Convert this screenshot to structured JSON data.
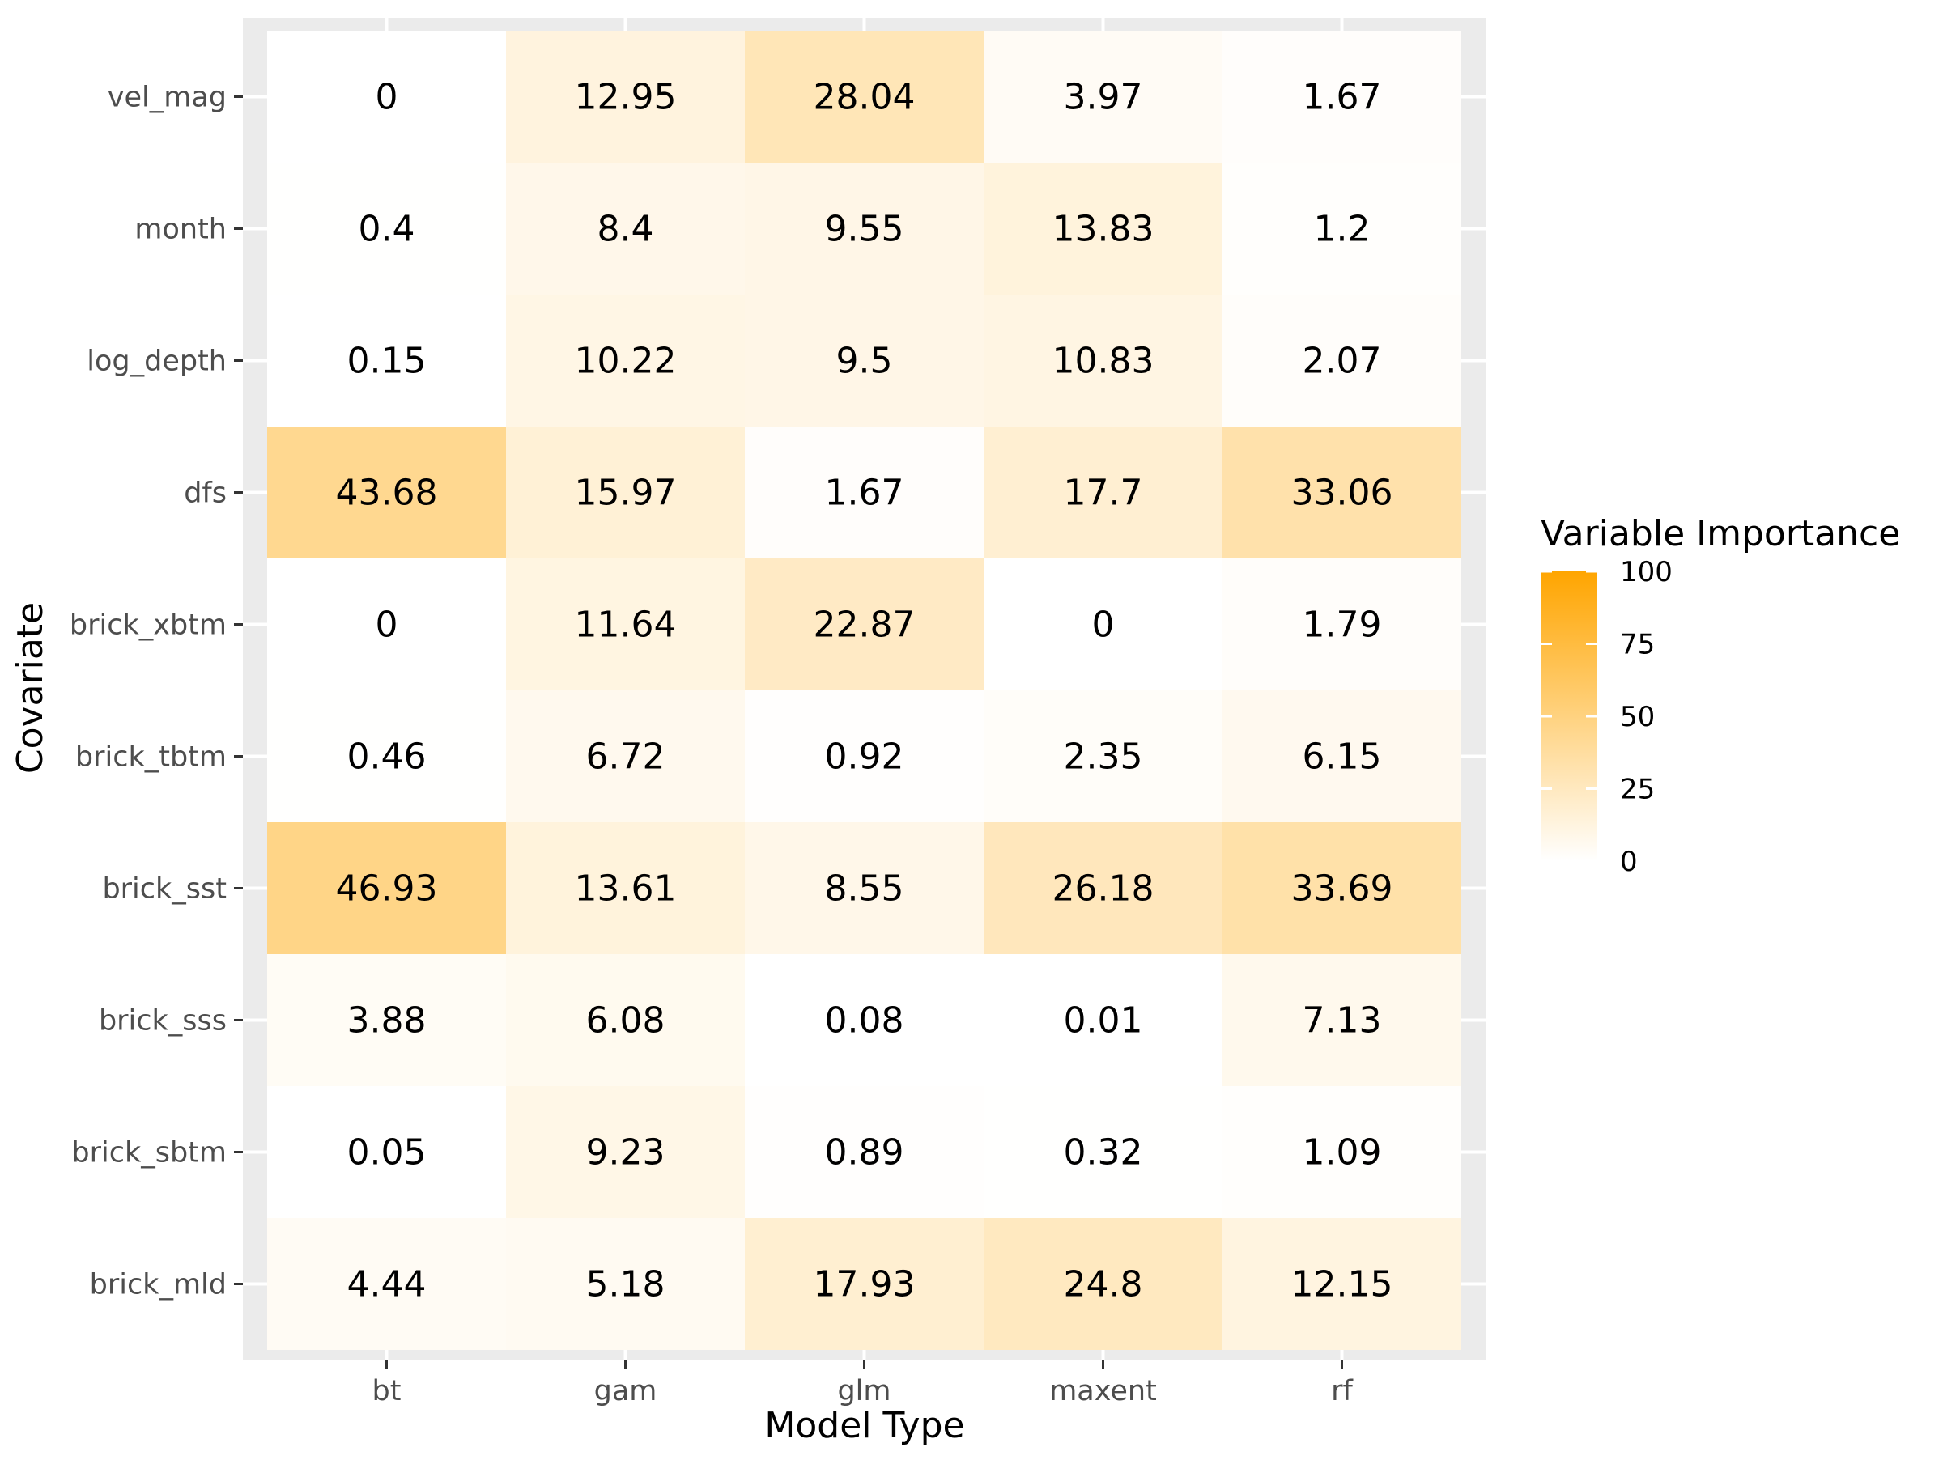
{
  "chart_data": {
    "type": "heatmap",
    "xlabel": "Model Type",
    "ylabel": "Covariate",
    "x_categories": [
      "bt",
      "gam",
      "glm",
      "maxent",
      "rf"
    ],
    "y_categories": [
      "vel_mag",
      "month",
      "log_depth",
      "dfs",
      "brick_xbtm",
      "brick_tbtm",
      "brick_sst",
      "brick_sss",
      "brick_sbtm",
      "brick_mld"
    ],
    "values": [
      [
        0,
        12.95,
        28.04,
        3.97,
        1.67
      ],
      [
        0.4,
        8.4,
        9.55,
        13.83,
        1.2
      ],
      [
        0.15,
        10.22,
        9.5,
        10.83,
        2.07
      ],
      [
        43.68,
        15.97,
        1.67,
        17.7,
        33.06
      ],
      [
        0,
        11.64,
        22.87,
        0,
        1.79
      ],
      [
        0.46,
        6.72,
        0.92,
        2.35,
        6.15
      ],
      [
        46.93,
        13.61,
        8.55,
        26.18,
        33.69
      ],
      [
        3.88,
        6.08,
        0.08,
        0.01,
        7.13
      ],
      [
        0.05,
        9.23,
        0.89,
        0.32,
        1.09
      ],
      [
        4.44,
        5.18,
        17.93,
        24.8,
        12.15
      ]
    ],
    "labels": [
      [
        "0",
        "12.95",
        "28.04",
        "3.97",
        "1.67"
      ],
      [
        "0.4",
        "8.4",
        "9.55",
        "13.83",
        "1.2"
      ],
      [
        "0.15",
        "10.22",
        "9.5",
        "10.83",
        "2.07"
      ],
      [
        "43.68",
        "15.97",
        "1.67",
        "17.7",
        "33.06"
      ],
      [
        "0",
        "11.64",
        "22.87",
        "0",
        "1.79"
      ],
      [
        "0.46",
        "6.72",
        "0.92",
        "2.35",
        "6.15"
      ],
      [
        "46.93",
        "13.61",
        "8.55",
        "26.18",
        "33.69"
      ],
      [
        "3.88",
        "6.08",
        "0.08",
        "0.01",
        "7.13"
      ],
      [
        "0.05",
        "9.23",
        "0.89",
        "0.32",
        "1.09"
      ],
      [
        "4.44",
        "5.18",
        "17.93",
        "24.8",
        "12.15"
      ]
    ],
    "legend": {
      "title": "Variable Importance",
      "range": [
        0,
        100
      ],
      "ticks": [
        0,
        25,
        50,
        75,
        100
      ],
      "tick_labels": [
        "0",
        "25",
        "50",
        "75",
        "100"
      ],
      "low_color": "#ffffff",
      "high_color": "#ffa500",
      "placement": "right"
    },
    "panel_background": "#ebebeb",
    "grid_color": "#ffffff",
    "grid": true
  }
}
